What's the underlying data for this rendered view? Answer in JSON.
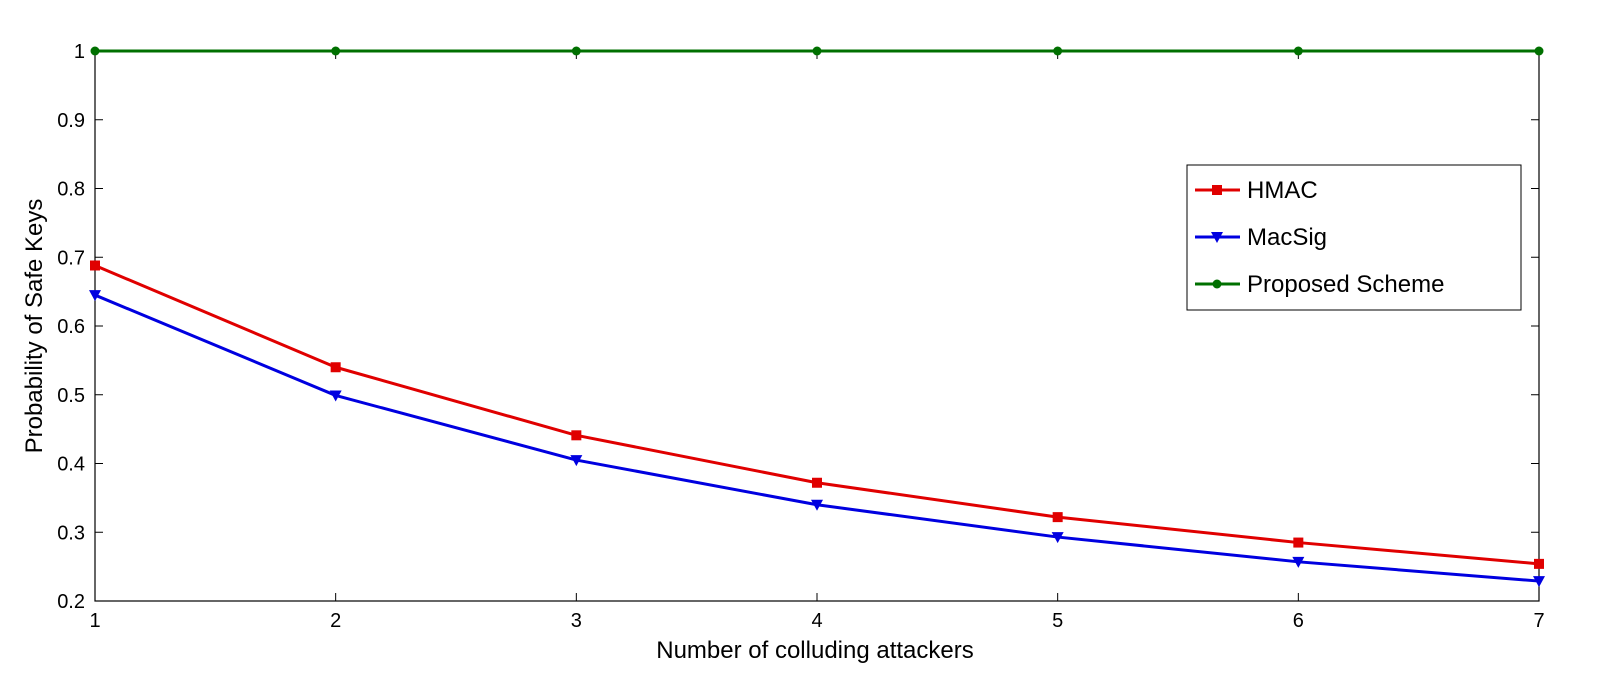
{
  "chart_data": {
    "type": "line",
    "xlabel": "Number of colluding attackers",
    "ylabel": "Probability of Safe Keys",
    "xlim": [
      1,
      7
    ],
    "ylim": [
      0.2,
      1.0
    ],
    "xticks": [
      "1",
      "2",
      "3",
      "4",
      "5",
      "6",
      "7"
    ],
    "yticks": [
      "0.2",
      "0.3",
      "0.4",
      "0.5",
      "0.6",
      "0.7",
      "0.8",
      "0.9",
      "1"
    ],
    "grid": false,
    "legend_position": "top-right",
    "x": [
      1,
      2,
      3,
      4,
      5,
      6,
      7
    ],
    "series": [
      {
        "name": "HMAC",
        "color": "#e00000",
        "marker": "square",
        "values": [
          0.688,
          0.54,
          0.441,
          0.372,
          0.322,
          0.285,
          0.254
        ]
      },
      {
        "name": "MacSig",
        "color": "#0000e0",
        "marker": "triangle-down",
        "values": [
          0.645,
          0.499,
          0.405,
          0.34,
          0.293,
          0.257,
          0.229
        ]
      },
      {
        "name": "Proposed Scheme",
        "color": "#007000",
        "marker": "circle",
        "values": [
          1,
          1,
          1,
          1,
          1,
          1,
          1
        ]
      }
    ]
  }
}
